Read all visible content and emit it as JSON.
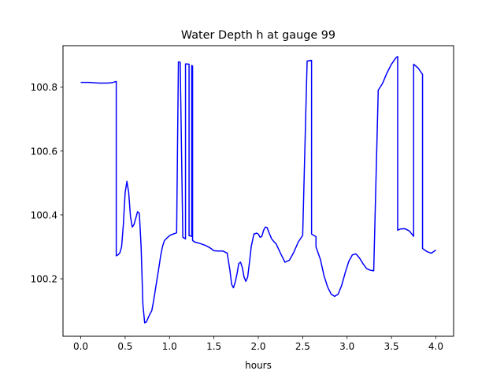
{
  "chart_data": {
    "type": "line",
    "title": "Water Depth h at gauge 99",
    "xlabel": "hours",
    "ylabel": "",
    "xlim": [
      -0.2,
      4.2
    ],
    "ylim": [
      100.02,
      100.93
    ],
    "xticks": [
      0.0,
      0.5,
      1.0,
      1.5,
      2.0,
      2.5,
      3.0,
      3.5,
      4.0
    ],
    "xtick_labels": [
      "0.0",
      "0.5",
      "1.0",
      "1.5",
      "2.0",
      "2.5",
      "3.0",
      "3.5",
      "4.0"
    ],
    "yticks": [
      100.2,
      100.4,
      100.6,
      100.8
    ],
    "ytick_labels": [
      "100.2",
      "100.4",
      "100.6",
      "100.8"
    ],
    "grid": false,
    "series": [
      {
        "color": "#0000ff",
        "x": [
          0.0,
          0.1,
          0.2,
          0.3,
          0.35,
          0.4,
          0.4,
          0.42,
          0.44,
          0.46,
          0.48,
          0.5,
          0.52,
          0.54,
          0.56,
          0.58,
          0.6,
          0.62,
          0.64,
          0.66,
          0.68,
          0.7,
          0.72,
          0.74,
          0.76,
          0.78,
          0.8,
          0.82,
          0.84,
          0.86,
          0.88,
          0.9,
          0.92,
          0.94,
          0.96,
          0.98,
          1.0,
          1.02,
          1.04,
          1.06,
          1.08,
          1.1,
          1.12,
          1.15,
          1.18,
          1.18,
          1.22,
          1.22,
          1.25,
          1.25,
          1.26,
          1.26,
          1.28,
          1.28,
          1.3,
          1.35,
          1.4,
          1.45,
          1.5,
          1.55,
          1.6,
          1.65,
          1.68,
          1.7,
          1.72,
          1.74,
          1.76,
          1.78,
          1.8,
          1.82,
          1.84,
          1.86,
          1.88,
          1.9,
          1.92,
          1.95,
          1.98,
          2.0,
          2.02,
          2.04,
          2.06,
          2.08,
          2.1,
          2.12,
          2.15,
          2.18,
          2.2,
          2.25,
          2.3,
          2.35,
          2.4,
          2.45,
          2.5,
          2.55,
          2.6,
          2.6,
          2.65,
          2.65,
          2.7,
          2.74,
          2.78,
          2.82,
          2.86,
          2.9,
          2.94,
          2.98,
          3.02,
          3.06,
          3.1,
          3.14,
          3.18,
          3.22,
          3.26,
          3.3,
          3.35,
          3.35,
          3.4,
          3.45,
          3.5,
          3.55,
          3.57,
          3.57,
          3.6,
          3.65,
          3.7,
          3.75,
          3.75,
          3.8,
          3.85,
          3.85,
          3.9,
          3.95,
          4.0
        ],
        "y": [
          100.815,
          100.815,
          100.813,
          100.813,
          100.814,
          100.818,
          100.272,
          100.275,
          100.281,
          100.3,
          100.37,
          100.47,
          100.505,
          100.47,
          100.395,
          100.362,
          100.37,
          100.39,
          100.41,
          100.405,
          100.3,
          100.12,
          100.062,
          100.065,
          100.078,
          100.09,
          100.1,
          100.13,
          100.165,
          100.2,
          100.235,
          100.272,
          100.3,
          100.318,
          100.325,
          100.33,
          100.335,
          100.338,
          100.34,
          100.342,
          100.344,
          100.879,
          100.878,
          100.33,
          100.325,
          100.873,
          100.872,
          100.335,
          100.333,
          100.868,
          100.866,
          100.32,
          100.316,
          100.315,
          100.314,
          100.31,
          100.305,
          100.298,
          100.288,
          100.287,
          100.287,
          100.28,
          100.227,
          100.182,
          100.172,
          100.19,
          100.215,
          100.248,
          100.252,
          100.235,
          100.205,
          100.192,
          100.205,
          100.25,
          100.3,
          100.34,
          100.343,
          100.34,
          100.33,
          100.333,
          100.352,
          100.362,
          100.36,
          100.345,
          100.325,
          100.315,
          100.31,
          100.28,
          100.252,
          100.258,
          100.283,
          100.315,
          100.336,
          100.882,
          100.884,
          100.34,
          100.332,
          100.3,
          100.26,
          100.21,
          100.175,
          100.152,
          100.145,
          100.152,
          100.18,
          100.22,
          100.255,
          100.275,
          100.278,
          100.265,
          100.247,
          100.232,
          100.227,
          100.225,
          100.778,
          100.79,
          100.812,
          100.845,
          100.872,
          100.892,
          100.896,
          100.352,
          100.356,
          100.357,
          100.35,
          100.333,
          100.872,
          100.86,
          100.84,
          100.295,
          100.285,
          100.28,
          100.29
        ]
      }
    ]
  }
}
